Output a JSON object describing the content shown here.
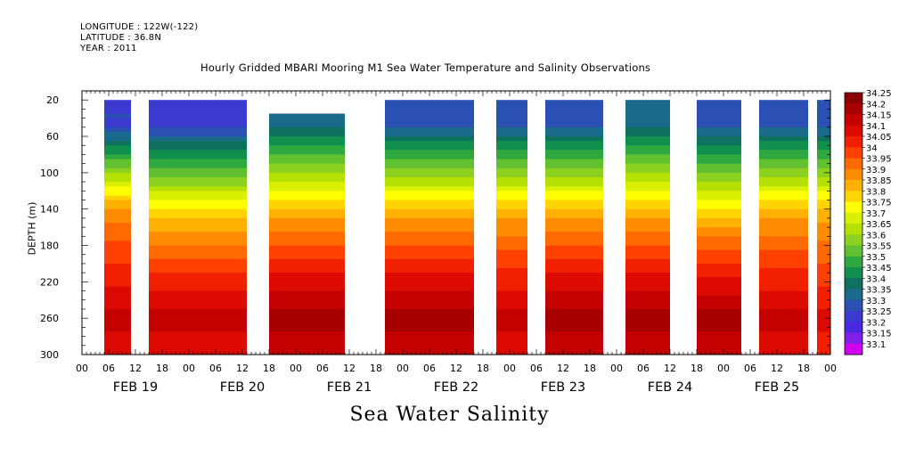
{
  "header": {
    "longitude": "LONGITUDE : 122W(-122)",
    "latitude": "LATITUDE : 36.8N",
    "year": "YEAR : 2011"
  },
  "chart_data": {
    "type": "heatmap",
    "title": "Hourly Gridded MBARI Mooring M1 Sea Water Temperature and Salinity Observations",
    "bottom_title": "Sea Water Salinity",
    "ylabel": "DEPTH (m)",
    "xlabel": "",
    "y_ticks": [
      "20",
      "60",
      "100",
      "140",
      "180",
      "220",
      "260",
      "300"
    ],
    "y_range": [
      300,
      10
    ],
    "x_hour_ticks": [
      "00",
      "06",
      "12",
      "18",
      "00",
      "06",
      "12",
      "18",
      "00",
      "06",
      "12",
      "18",
      "00",
      "06",
      "12",
      "18",
      "00",
      "06",
      "12",
      "18",
      "00",
      "06",
      "12",
      "18",
      "00",
      "06",
      "12",
      "18",
      "00"
    ],
    "x_date_labels": [
      "FEB 19",
      "FEB 20",
      "FEB 21",
      "FEB 22",
      "FEB 23",
      "FEB 24",
      "FEB 25"
    ],
    "x_range_hours": [
      0,
      168
    ],
    "colorbar": {
      "levels": [
        "34.25",
        "34.2",
        "34.15",
        "34.1",
        "34.05",
        "34",
        "33.95",
        "33.9",
        "33.85",
        "33.8",
        "33.75",
        "33.7",
        "33.65",
        "33.6",
        "33.55",
        "33.5",
        "33.45",
        "33.4",
        "33.35",
        "33.3",
        "33.25",
        "33.2",
        "33.15",
        "33.1"
      ],
      "colors": [
        "#8b0000",
        "#a80000",
        "#c40000",
        "#dc0a00",
        "#f02000",
        "#ff4000",
        "#ff6a00",
        "#ff8c00",
        "#ffb000",
        "#ffd400",
        "#ffff00",
        "#d8f000",
        "#b4e000",
        "#8cd020",
        "#60c030",
        "#30a840",
        "#10904c",
        "#107060",
        "#1a6a8c",
        "#2a50b4",
        "#3a3ad0",
        "#4a28e0",
        "#8020e8",
        "#d000f0"
      ]
    },
    "data_gaps_hours": [
      [
        -1,
        5
      ],
      [
        11,
        15
      ],
      [
        37,
        42
      ],
      [
        59,
        68
      ],
      [
        88,
        93
      ],
      [
        100,
        104
      ],
      [
        117,
        122
      ],
      [
        132,
        138
      ],
      [
        148,
        152
      ],
      [
        163,
        165
      ]
    ],
    "profiles": [
      {
        "hours": [
          5,
          11
        ],
        "surface": 33.25,
        "mid": 33.9,
        "deep": 34.15
      },
      {
        "hours": [
          15,
          37
        ],
        "surface": 33.25,
        "mid": 33.8,
        "deep": 34.15
      },
      {
        "hours": [
          42,
          59
        ],
        "surface": 33.35,
        "mid": 33.85,
        "deep": 34.2
      },
      {
        "hours": [
          68,
          88
        ],
        "surface": 33.3,
        "mid": 33.85,
        "deep": 34.2
      },
      {
        "hours": [
          93,
          100
        ],
        "surface": 33.3,
        "mid": 33.85,
        "deep": 34.15
      },
      {
        "hours": [
          104,
          117
        ],
        "surface": 33.3,
        "mid": 33.85,
        "deep": 34.2
      },
      {
        "hours": [
          122,
          132
        ],
        "surface": 33.35,
        "mid": 33.85,
        "deep": 34.2
      },
      {
        "hours": [
          138,
          148
        ],
        "surface": 33.3,
        "mid": 33.8,
        "deep": 34.2
      },
      {
        "hours": [
          152,
          163
        ],
        "surface": 33.3,
        "mid": 33.85,
        "deep": 34.15
      },
      {
        "hours": [
          165,
          168
        ],
        "surface": 33.3,
        "mid": 33.85,
        "deep": 34.1
      }
    ]
  }
}
